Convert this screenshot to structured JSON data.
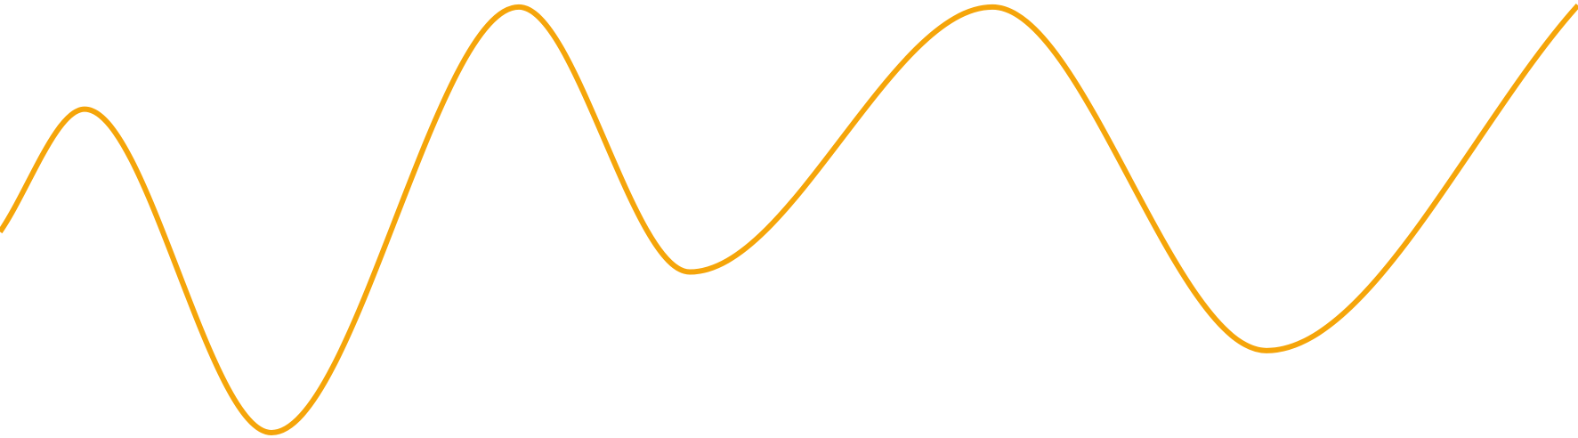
{
  "chart_data": {
    "type": "line",
    "title": "",
    "xlabel": "",
    "ylabel": "",
    "grid": false,
    "legend": "none",
    "series": [
      {
        "color": "#F5A50A",
        "smooth": true,
        "points": [
          [
            0,
            0.47
          ],
          [
            95,
            0.757
          ],
          [
            305,
            0
          ],
          [
            583,
            0.996
          ],
          [
            775,
            0.376
          ],
          [
            1115,
            0.996
          ],
          [
            1423,
            0.192
          ],
          [
            1773,
            1
          ]
        ]
      }
    ],
    "xlim": [
      0,
      1773
    ],
    "ylim": [
      0,
      1
    ]
  }
}
